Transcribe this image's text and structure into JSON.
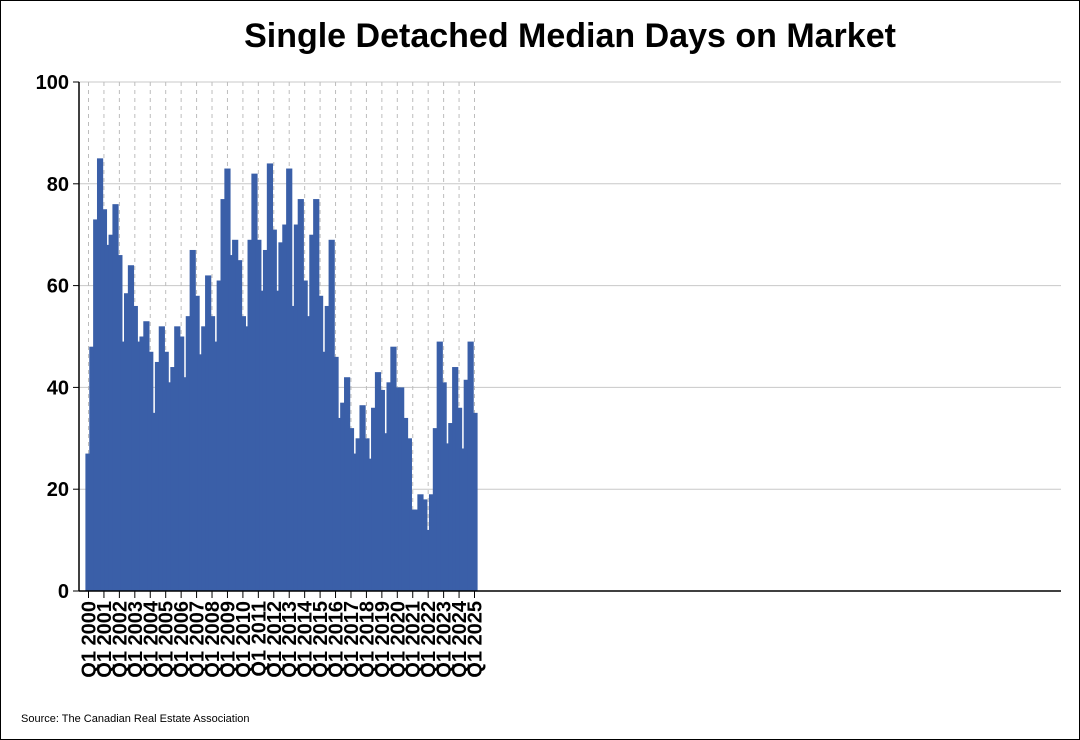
{
  "chart_data": {
    "type": "bar",
    "title": "Single Detached Median Days on Market",
    "xlabel": "",
    "ylabel": "",
    "ylim": [
      0,
      100
    ],
    "yticks": [
      0,
      20,
      40,
      60,
      80,
      100
    ],
    "grid": true,
    "bar_color": "#3a5fa8",
    "x_tick_labels": [
      "Q1 2000",
      "Q1 2001",
      "Q1 2002",
      "Q1 2003",
      "Q1 2004",
      "Q1 2005",
      "Q1 2006",
      "Q1 2007",
      "Q1 2008",
      "Q1 2009",
      "Q1 2010",
      "Q1 2011",
      "Q1 2012",
      "Q1 2013",
      "Q1 2014",
      "Q1 2015",
      "Q1 2016",
      "Q1 2017",
      "Q1 2018",
      "Q1 2019",
      "Q1 2020",
      "Q1 2021",
      "Q1 2022",
      "Q1 2023",
      "Q1 2024",
      "Q1 2025"
    ],
    "values": [
      27,
      48,
      73,
      85,
      75,
      68,
      70,
      76,
      66,
      49,
      58.5,
      64,
      56,
      49,
      50,
      53,
      47,
      35,
      45,
      52,
      47,
      41,
      44,
      52,
      50,
      42,
      54,
      67,
      58,
      46.5,
      52,
      62,
      54,
      49,
      61,
      77,
      83,
      66,
      69,
      65,
      54,
      52,
      69,
      82,
      69,
      59,
      67,
      84,
      71,
      59,
      68.5,
      72,
      83,
      56,
      72,
      77,
      61,
      54,
      70,
      77,
      58,
      47,
      56,
      69,
      46,
      34,
      37,
      42,
      32,
      27,
      30,
      36.5,
      30,
      26,
      36,
      43,
      39.5,
      31,
      41,
      48,
      40,
      40,
      34,
      30,
      16,
      16,
      19,
      18,
      12,
      19,
      32,
      49,
      41,
      29,
      33,
      44,
      36,
      28,
      41.5,
      49,
      35
    ]
  },
  "footer": {
    "source": "Source: The Canadian Real Estate Association"
  }
}
